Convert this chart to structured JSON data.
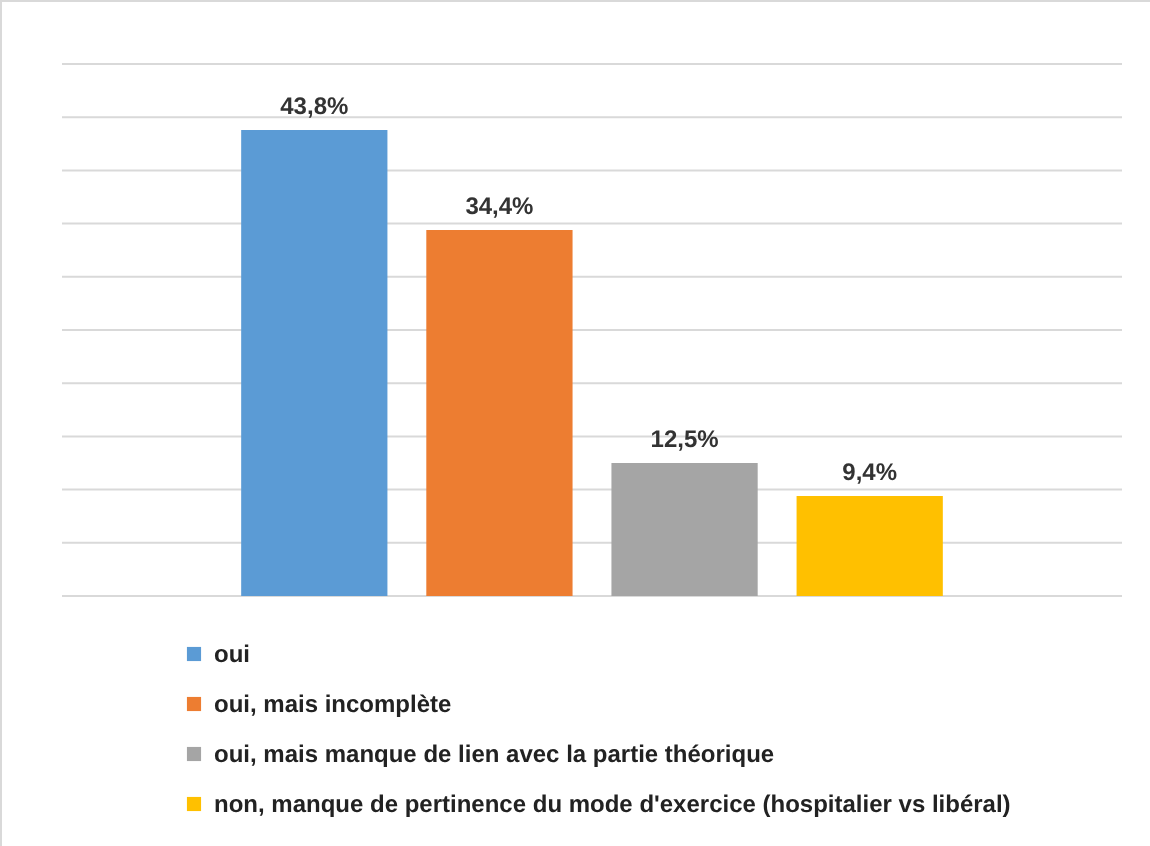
{
  "chart_data": {
    "type": "bar",
    "categories": [
      null
    ],
    "series": [
      {
        "name": "oui",
        "color": "#5b9bd5",
        "values": [
          43.8
        ],
        "value_labels": [
          "43,8%"
        ]
      },
      {
        "name": "oui, mais incomplète",
        "color": "#ed7d31",
        "values": [
          34.4
        ],
        "value_labels": [
          "34,4%"
        ]
      },
      {
        "name": "oui, mais manque de lien avec la partie théorique",
        "color": "#a5a5a5",
        "values": [
          12.5
        ],
        "value_labels": [
          "12,5%"
        ]
      },
      {
        "name": "non, manque de pertinence du mode d'exercice (hospitalier vs libéral)",
        "color": "#ffc000",
        "values": [
          9.4
        ],
        "value_labels": [
          "9,4%"
        ]
      }
    ],
    "ylim": [
      0,
      50
    ],
    "yticks": [
      {
        "value": 0,
        "label": null
      },
      {
        "value": 5,
        "label": null
      },
      {
        "value": 10,
        "label": null
      },
      {
        "value": 15,
        "label": null
      },
      {
        "value": 20,
        "label": null
      },
      {
        "value": 25,
        "label": null
      },
      {
        "value": 30,
        "label": null
      },
      {
        "value": 35,
        "label": null
      },
      {
        "value": 40,
        "label": null
      },
      {
        "value": 45,
        "label": null
      },
      {
        "value": 50,
        "label": null
      }
    ],
    "grid": "y",
    "legend": "bottom"
  }
}
